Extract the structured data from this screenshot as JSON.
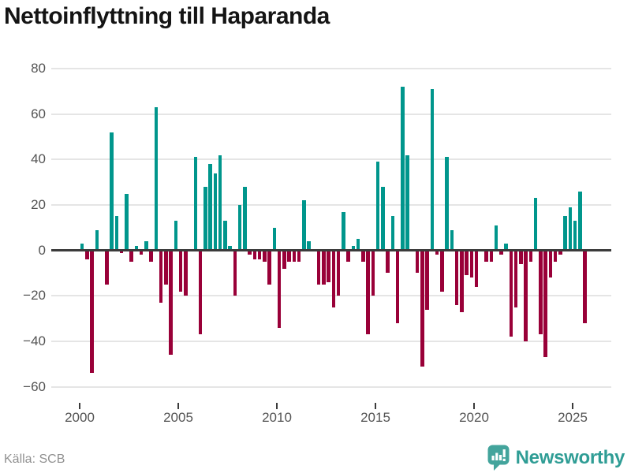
{
  "title": "Nettoinflyttning till Haparanda",
  "footer": {
    "source": "Källa: SCB",
    "brand": "Newsworthy"
  },
  "colors": {
    "positive": "#00968c",
    "negative": "#990038",
    "grid": "#e5e5e5",
    "zero_line": "#3b3b3b",
    "axis_text": "#545454",
    "title_text": "#141414",
    "source_text": "#919191",
    "brand_teal": "#2f9d95",
    "brand_icon_fill": "#43a49c"
  },
  "chart_data": {
    "type": "bar",
    "title": "Nettoinflyttning till Haparanda",
    "frequency": "quarterly",
    "start": "2000-Q1",
    "end": "2025-Q3",
    "grid": true,
    "legend": false,
    "ylim": [
      -60,
      80
    ],
    "y_ticks": [
      80,
      60,
      40,
      20,
      0,
      -20,
      -40,
      -60
    ],
    "x_tick_labels": [
      "2000",
      "2005",
      "2010",
      "2015",
      "2020",
      "2025"
    ],
    "values": [
      3,
      -4,
      -54,
      9,
      0,
      -15,
      52,
      15,
      -1,
      25,
      -5,
      2,
      -2,
      4,
      -5,
      63,
      -23,
      -15,
      -46,
      13,
      -18,
      -20,
      0,
      41,
      -37,
      28,
      38,
      34,
      42,
      13,
      2,
      -20,
      20,
      28,
      -2,
      -4,
      -4,
      -5,
      -15,
      10,
      -34,
      -8,
      -5,
      -5,
      -5,
      22,
      4,
      0,
      -15,
      -15,
      -14,
      -25,
      -20,
      17,
      -5,
      2,
      5,
      -5,
      -37,
      -20,
      39,
      28,
      -10,
      15,
      -32,
      72,
      42,
      0,
      -10,
      -51,
      -26,
      71,
      -2,
      -18,
      41,
      9,
      -24,
      -27,
      -11,
      -12,
      -16,
      0,
      -5,
      -5,
      11,
      -2,
      3,
      -38,
      -25,
      -6,
      -40,
      -5,
      23,
      -37,
      -47,
      -12,
      -5,
      -2,
      15,
      19,
      13,
      26,
      -32
    ]
  }
}
